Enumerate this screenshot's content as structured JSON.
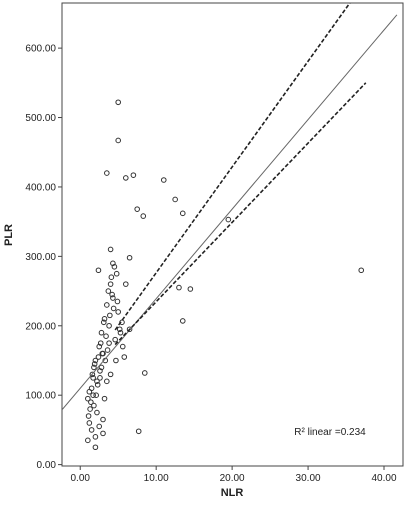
{
  "chart_data": {
    "type": "scatter",
    "x_label": "NLR",
    "y_label": "PLR",
    "annotation": "R² linear =0.234",
    "xlim": [
      -2.4,
      42.5
    ],
    "ylim": [
      -2,
      665
    ],
    "xticks": [
      {
        "value": 0,
        "label": "0.00"
      },
      {
        "value": 10,
        "label": "10.00"
      },
      {
        "value": 20,
        "label": "20.00"
      },
      {
        "value": 30,
        "label": "30.00"
      },
      {
        "value": 40,
        "label": "40.00"
      }
    ],
    "yticks": [
      {
        "value": 0,
        "label": "0.00"
      },
      {
        "value": 100,
        "label": "100.00"
      },
      {
        "value": 200,
        "label": "200.00"
      },
      {
        "value": 300,
        "label": "300.00"
      },
      {
        "value": 400,
        "label": "400.00"
      },
      {
        "value": 500,
        "label": "500.00"
      },
      {
        "value": 600,
        "label": "600.00"
      }
    ],
    "marker_color": "#333333",
    "x": [
      1.0,
      1.2,
      1.5,
      1.8,
      2.0,
      2.2,
      2.5,
      2.8,
      3.0,
      3.2,
      3.5,
      3.8,
      4.0,
      4.3,
      4.6,
      5.0,
      5.3,
      5.6,
      6.0,
      1.3,
      1.6,
      1.9,
      2.1,
      2.4,
      2.7,
      3.1,
      3.4,
      3.7,
      4.1,
      4.4,
      4.8,
      5.2,
      1.1,
      1.4,
      1.7,
      2.3,
      2.6,
      2.9,
      3.3,
      3.6,
      3.9,
      4.2,
      4.5,
      1.5,
      2.0,
      2.5,
      3.0,
      3.5,
      4.0,
      4.7,
      1.2,
      1.8,
      2.2,
      2.8,
      3.2,
      3.8,
      4.3,
      5.5,
      6.5,
      2.4,
      1.0,
      3.0,
      2.0,
      4.9,
      5.8,
      1.7,
      2.6,
      5,
      5,
      3.5,
      6,
      7,
      11,
      12.5,
      13.5,
      7.5,
      8.3,
      19.5,
      37,
      13,
      14.5,
      13.5,
      8.5,
      7.7,
      4,
      6.5
    ],
    "y": [
      95,
      60,
      110,
      140,
      150,
      120,
      170,
      190,
      160,
      210,
      230,
      200,
      260,
      240,
      180,
      220,
      190,
      170,
      260,
      80,
      130,
      145,
      100,
      155,
      175,
      205,
      185,
      250,
      270,
      225,
      275,
      195,
      70,
      90,
      125,
      115,
      135,
      160,
      150,
      165,
      215,
      245,
      285,
      50,
      40,
      55,
      65,
      120,
      130,
      150,
      105,
      85,
      75,
      140,
      95,
      175,
      290,
      205,
      195,
      280,
      35,
      45,
      25,
      235,
      155,
      100,
      125,
      522,
      467,
      420,
      413,
      417,
      410,
      382,
      362,
      368,
      358,
      353,
      280,
      255,
      253,
      207,
      132,
      48,
      310,
      298
    ],
    "fit_line": {
      "x": [
        -2.4,
        41.7
      ],
      "y": [
        79,
        648
      ],
      "color": "#666666"
    },
    "ci_upper": {
      "x": [
        4.6,
        35.5
      ],
      "y": [
        194,
        665
      ],
      "color": "#222222"
    },
    "ci_lower": {
      "x": [
        4.6,
        37.6
      ],
      "y": [
        173,
        550
      ],
      "color": "#222222"
    }
  }
}
